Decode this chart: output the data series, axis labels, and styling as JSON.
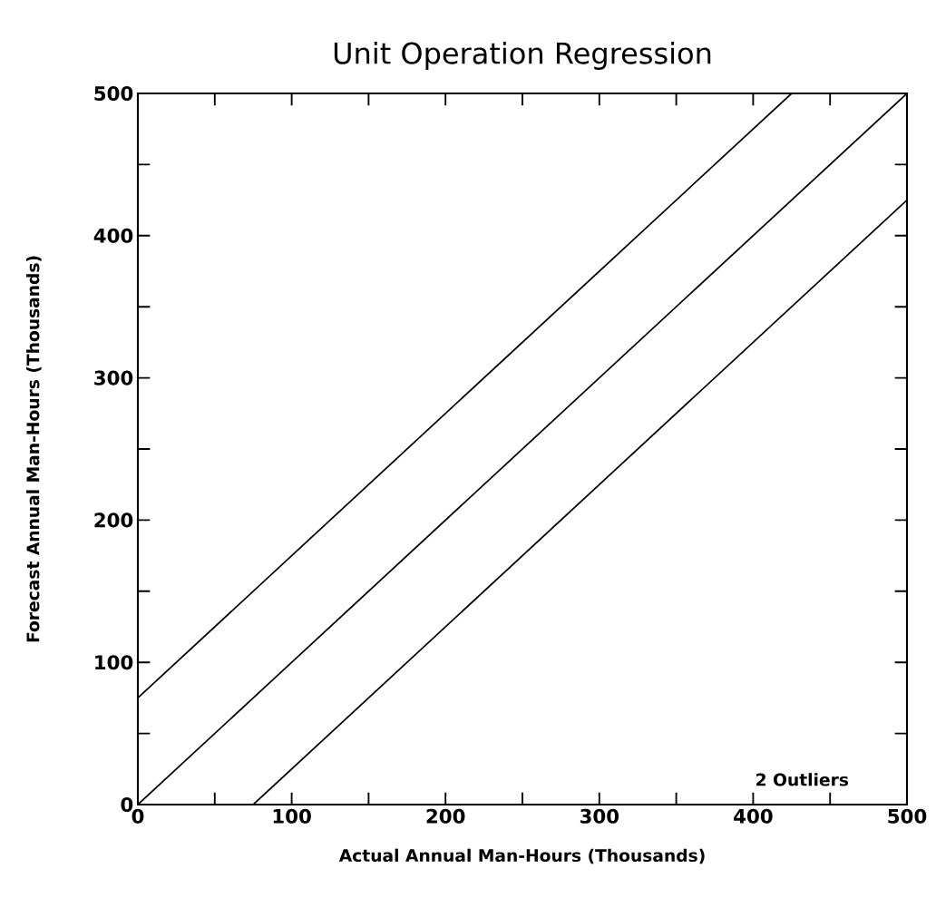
{
  "chart_data": {
    "type": "line",
    "title": "Unit Operation Regression",
    "xlabel": "Actual Annual Man-Hours (Thousands)",
    "ylabel": "Forecast Annual Man-Hours (Thousands)",
    "series": [
      {
        "color": "#000000",
        "x": [
          0,
          425
        ],
        "values": [
          75,
          500
        ]
      },
      {
        "color": "#000000",
        "x": [
          0,
          500
        ],
        "values": [
          0,
          500
        ]
      },
      {
        "color": "#000000",
        "x": [
          75,
          500
        ],
        "values": [
          0,
          425
        ]
      }
    ],
    "xlim": [
      0,
      500
    ],
    "ylim": [
      0,
      500
    ],
    "xticks": [
      0,
      {
        "value": 50,
        "label": null
      },
      100,
      {
        "value": 150,
        "label": null
      },
      200,
      {
        "value": 250,
        "label": null
      },
      300,
      {
        "value": 350,
        "label": null
      },
      400,
      {
        "value": 450,
        "label": null
      },
      500
    ],
    "yticks": [
      0,
      {
        "value": 50,
        "label": null
      },
      100,
      {
        "value": 150,
        "label": null
      },
      200,
      {
        "value": 250,
        "label": null
      },
      300,
      {
        "value": 350,
        "label": null
      },
      400,
      {
        "value": 450,
        "label": null
      },
      500
    ],
    "annotations": [
      "2 Outliers"
    ],
    "grid": false,
    "marker": "none",
    "line_style": "solid"
  }
}
